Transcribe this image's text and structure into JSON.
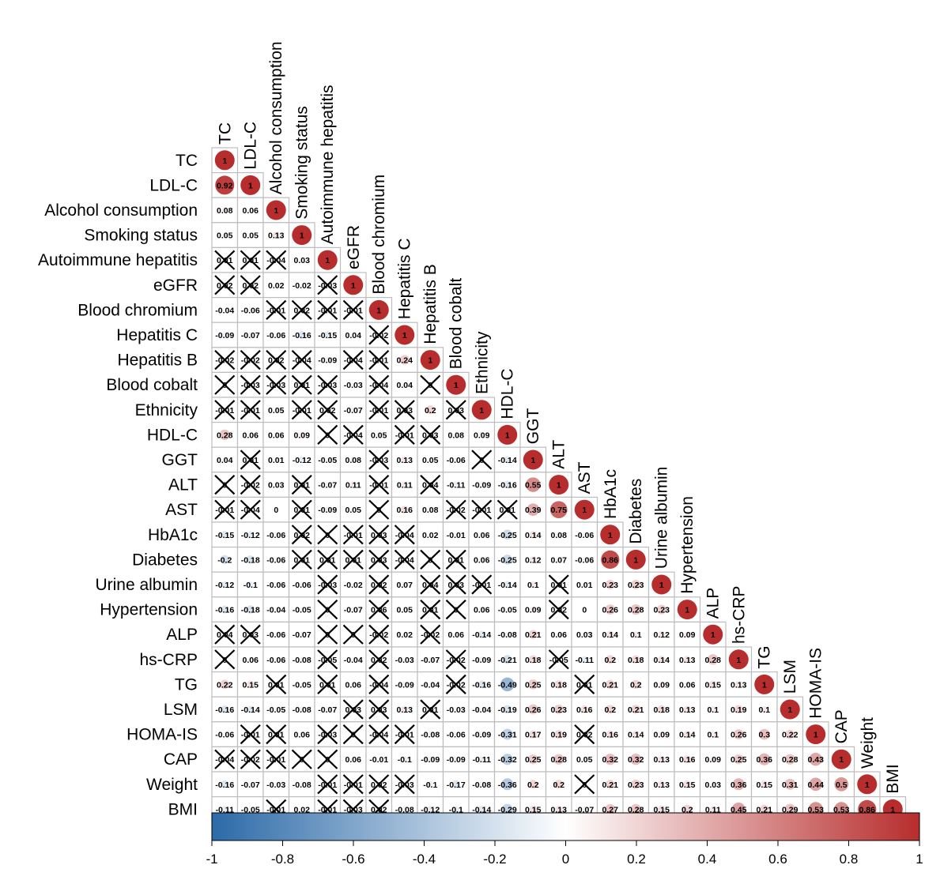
{
  "chart_data": {
    "type": "heatmap",
    "subtype": "correlation-matrix-lower-triangle",
    "variables": [
      "TC",
      "LDL-C",
      "Alcohol consumption",
      "Smoking status",
      "Autoimmune hepatitis",
      "eGFR",
      "Blood chromium",
      "Hepatitis C",
      "Hepatitis B",
      "Blood cobalt",
      "Ethnicity",
      "HDL-C",
      "GGT",
      "ALT",
      "AST",
      "HbA1c",
      "Diabetes",
      "Urine albumin",
      "Hypertension",
      "ALP",
      "hs-CRP",
      "TG",
      "LSM",
      "HOMA-IS",
      "CAP",
      "Weight",
      "BMI"
    ],
    "rows": [
      [
        {
          "v": "1"
        }
      ],
      [
        {
          "v": "0.92"
        },
        {
          "v": "1"
        }
      ],
      [
        {
          "v": "0.08"
        },
        {
          "v": "0.06"
        },
        {
          "v": "1"
        }
      ],
      [
        {
          "v": "0.05"
        },
        {
          "v": "0.05"
        },
        {
          "v": "0.13"
        },
        {
          "v": "1"
        }
      ],
      [
        {
          "v": "0.01",
          "x": 1
        },
        {
          "v": "0.01",
          "x": 1
        },
        {
          "v": "-0.04",
          "x": 1
        },
        {
          "v": "0.03"
        },
        {
          "v": "1"
        }
      ],
      [
        {
          "v": "0.02",
          "x": 1
        },
        {
          "v": "0.02",
          "x": 1
        },
        {
          "v": "0.02"
        },
        {
          "v": "-0.02"
        },
        {
          "v": "-0.03",
          "x": 1
        },
        {
          "v": "1"
        }
      ],
      [
        {
          "v": "-0.04"
        },
        {
          "v": "-0.06"
        },
        {
          "v": "-0.01",
          "x": 1
        },
        {
          "v": "0.02",
          "x": 1
        },
        {
          "v": "-0.01",
          "x": 1
        },
        {
          "v": "-0.01",
          "x": 1
        },
        {
          "v": "1"
        }
      ],
      [
        {
          "v": "-0.09"
        },
        {
          "v": "-0.07"
        },
        {
          "v": "-0.06"
        },
        {
          "v": "-0.16"
        },
        {
          "v": "-0.15"
        },
        {
          "v": "0.04"
        },
        {
          "v": "-0.02",
          "x": 1
        },
        {
          "v": "1"
        }
      ],
      [
        {
          "v": "-0.02",
          "x": 1
        },
        {
          "v": "-0.02",
          "x": 1
        },
        {
          "v": "0.02",
          "x": 1
        },
        {
          "v": "-0.04",
          "x": 1
        },
        {
          "v": "-0.09"
        },
        {
          "v": "-0.04",
          "x": 1
        },
        {
          "v": "-0.01",
          "x": 1
        },
        {
          "v": "0.24"
        },
        {
          "v": "1"
        }
      ],
      [
        {
          "v": "0",
          "x": 1
        },
        {
          "v": "-0.03",
          "x": 1
        },
        {
          "v": "-0.03",
          "x": 1
        },
        {
          "v": "0.01",
          "x": 1
        },
        {
          "v": "-0.03",
          "x": 1
        },
        {
          "v": "-0.03"
        },
        {
          "v": "-0.04",
          "x": 1
        },
        {
          "v": "0.04"
        },
        {
          "v": "0",
          "x": 1
        },
        {
          "v": "1"
        }
      ],
      [
        {
          "v": "-0.01",
          "x": 1
        },
        {
          "v": "-0.01",
          "x": 1
        },
        {
          "v": "0.05"
        },
        {
          "v": "-0.01",
          "x": 1
        },
        {
          "v": "0.02",
          "x": 1
        },
        {
          "v": "-0.07"
        },
        {
          "v": "-0.01",
          "x": 1
        },
        {
          "v": "0.03",
          "x": 1
        },
        {
          "v": "0.2"
        },
        {
          "v": "0.03",
          "x": 1
        },
        {
          "v": "1"
        }
      ],
      [
        {
          "v": "0.28"
        },
        {
          "v": "0.06"
        },
        {
          "v": "0.06"
        },
        {
          "v": "0.09"
        },
        {
          "v": "0",
          "x": 1
        },
        {
          "v": "-0.04",
          "x": 1
        },
        {
          "v": "0.05"
        },
        {
          "v": "-0.01",
          "x": 1
        },
        {
          "v": "0.03",
          "x": 1
        },
        {
          "v": "0.08"
        },
        {
          "v": "0.09"
        },
        {
          "v": "1"
        }
      ],
      [
        {
          "v": "0.04"
        },
        {
          "v": "0.01",
          "x": 1
        },
        {
          "v": "0.01"
        },
        {
          "v": "-0.12"
        },
        {
          "v": "-0.05"
        },
        {
          "v": "0.08"
        },
        {
          "v": "-0.03",
          "x": 1
        },
        {
          "v": "0.13"
        },
        {
          "v": "0.05"
        },
        {
          "v": "-0.06"
        },
        {
          "v": "0",
          "x": 1
        },
        {
          "v": "-0.14"
        },
        {
          "v": "1"
        }
      ],
      [
        {
          "v": "0",
          "x": 1
        },
        {
          "v": "-0.02",
          "x": 1
        },
        {
          "v": "0.03"
        },
        {
          "v": "0.01",
          "x": 1
        },
        {
          "v": "-0.07"
        },
        {
          "v": "0.11"
        },
        {
          "v": "-0.01",
          "x": 1
        },
        {
          "v": "0.11"
        },
        {
          "v": "0.04",
          "x": 1
        },
        {
          "v": "-0.11"
        },
        {
          "v": "-0.09"
        },
        {
          "v": "-0.16"
        },
        {
          "v": "0.55"
        },
        {
          "v": "1"
        }
      ],
      [
        {
          "v": "-0.01",
          "x": 1
        },
        {
          "v": "-0.04",
          "x": 1
        },
        {
          "v": "0"
        },
        {
          "v": "0.01",
          "x": 1
        },
        {
          "v": "-0.09"
        },
        {
          "v": "0.05"
        },
        {
          "v": "0",
          "x": 1
        },
        {
          "v": "0.16"
        },
        {
          "v": "0.08"
        },
        {
          "v": "-0.02",
          "x": 1
        },
        {
          "v": "-0.01",
          "x": 1
        },
        {
          "v": "0.01",
          "x": 1
        },
        {
          "v": "0.39"
        },
        {
          "v": "0.75"
        },
        {
          "v": "1"
        }
      ],
      [
        {
          "v": "-0.15"
        },
        {
          "v": "-0.12"
        },
        {
          "v": "-0.06"
        },
        {
          "v": "0.02",
          "x": 1
        },
        {
          "v": "0",
          "x": 1
        },
        {
          "v": "-0.01",
          "x": 1
        },
        {
          "v": "0.03",
          "x": 1
        },
        {
          "v": "-0.04",
          "x": 1
        },
        {
          "v": "0.02"
        },
        {
          "v": "-0.01"
        },
        {
          "v": "0.06"
        },
        {
          "v": "-0.25"
        },
        {
          "v": "0.14"
        },
        {
          "v": "0.08"
        },
        {
          "v": "-0.06"
        },
        {
          "v": "1"
        }
      ],
      [
        {
          "v": "-0.2"
        },
        {
          "v": "-0.18"
        },
        {
          "v": "-0.06"
        },
        {
          "v": "0.01",
          "x": 1
        },
        {
          "v": "0.01",
          "x": 1
        },
        {
          "v": "0.01",
          "x": 1
        },
        {
          "v": "0.03",
          "x": 1
        },
        {
          "v": "-0.04",
          "x": 1
        },
        {
          "v": "0",
          "x": 1
        },
        {
          "v": "0.01",
          "x": 1
        },
        {
          "v": "0.06"
        },
        {
          "v": "-0.25"
        },
        {
          "v": "0.12"
        },
        {
          "v": "0.07"
        },
        {
          "v": "-0.06"
        },
        {
          "v": "0.86"
        },
        {
          "v": "1"
        }
      ],
      [
        {
          "v": "-0.12"
        },
        {
          "v": "-0.1"
        },
        {
          "v": "-0.06"
        },
        {
          "v": "-0.06"
        },
        {
          "v": "-0.03",
          "x": 1
        },
        {
          "v": "-0.02"
        },
        {
          "v": "0.02",
          "x": 1
        },
        {
          "v": "0.07"
        },
        {
          "v": "0.04",
          "x": 1
        },
        {
          "v": "0.03",
          "x": 1
        },
        {
          "v": "-0.01",
          "x": 1
        },
        {
          "v": "-0.14"
        },
        {
          "v": "0.1"
        },
        {
          "v": "0.01",
          "x": 1
        },
        {
          "v": "0.01"
        },
        {
          "v": "0.23"
        },
        {
          "v": "0.23"
        },
        {
          "v": "1"
        }
      ],
      [
        {
          "v": "-0.16"
        },
        {
          "v": "-0.18"
        },
        {
          "v": "-0.04"
        },
        {
          "v": "-0.05"
        },
        {
          "v": "0",
          "x": 1
        },
        {
          "v": "-0.07"
        },
        {
          "v": "0.06",
          "x": 1
        },
        {
          "v": "0.05"
        },
        {
          "v": "0.01",
          "x": 1
        },
        {
          "v": "0",
          "x": 1
        },
        {
          "v": "0.06"
        },
        {
          "v": "-0.05"
        },
        {
          "v": "0.09"
        },
        {
          "v": "0.02",
          "x": 1
        },
        {
          "v": "0"
        },
        {
          "v": "0.26"
        },
        {
          "v": "0.28"
        },
        {
          "v": "0.23"
        },
        {
          "v": "1"
        }
      ],
      [
        {
          "v": "0.04",
          "x": 1
        },
        {
          "v": "0.03",
          "x": 1
        },
        {
          "v": "-0.06"
        },
        {
          "v": "-0.07"
        },
        {
          "v": "0",
          "x": 1
        },
        {
          "v": "0",
          "x": 1
        },
        {
          "v": "-0.02",
          "x": 1
        },
        {
          "v": "0.02"
        },
        {
          "v": "-0.02",
          "x": 1
        },
        {
          "v": "0.06"
        },
        {
          "v": "-0.14"
        },
        {
          "v": "-0.08"
        },
        {
          "v": "0.21"
        },
        {
          "v": "0.06"
        },
        {
          "v": "0.03"
        },
        {
          "v": "0.14"
        },
        {
          "v": "0.1"
        },
        {
          "v": "0.12"
        },
        {
          "v": "0.09"
        },
        {
          "v": "1"
        }
      ],
      [
        {
          "v": "0",
          "x": 1
        },
        {
          "v": "0.06"
        },
        {
          "v": "-0.06"
        },
        {
          "v": "-0.08"
        },
        {
          "v": "-0.05",
          "x": 1
        },
        {
          "v": "-0.04"
        },
        {
          "v": "0.02",
          "x": 1
        },
        {
          "v": "-0.03"
        },
        {
          "v": "-0.07"
        },
        {
          "v": "-0.02",
          "x": 1
        },
        {
          "v": "-0.09"
        },
        {
          "v": "-0.21"
        },
        {
          "v": "0.18"
        },
        {
          "v": "-0.05",
          "x": 1
        },
        {
          "v": "-0.11"
        },
        {
          "v": "0.2"
        },
        {
          "v": "0.18"
        },
        {
          "v": "0.14"
        },
        {
          "v": "0.13"
        },
        {
          "v": "0.28"
        },
        {
          "v": "1"
        }
      ],
      [
        {
          "v": "0.22"
        },
        {
          "v": "0.15"
        },
        {
          "v": "0.01",
          "x": 1
        },
        {
          "v": "-0.05"
        },
        {
          "v": "0.01",
          "x": 1
        },
        {
          "v": "0.06"
        },
        {
          "v": "-0.04",
          "x": 1
        },
        {
          "v": "-0.09"
        },
        {
          "v": "-0.04"
        },
        {
          "v": "-0.02",
          "x": 1
        },
        {
          "v": "-0.16"
        },
        {
          "v": "-0.49"
        },
        {
          "v": "0.25"
        },
        {
          "v": "0.18"
        },
        {
          "v": "0.01",
          "x": 1
        },
        {
          "v": "0.21"
        },
        {
          "v": "0.2"
        },
        {
          "v": "0.09"
        },
        {
          "v": "0.06"
        },
        {
          "v": "0.15"
        },
        {
          "v": "0.13"
        },
        {
          "v": "1"
        }
      ],
      [
        {
          "v": "-0.16"
        },
        {
          "v": "-0.14"
        },
        {
          "v": "-0.05"
        },
        {
          "v": "-0.08"
        },
        {
          "v": "-0.07"
        },
        {
          "v": "0.03",
          "x": 1
        },
        {
          "v": "0.03",
          "x": 1
        },
        {
          "v": "0.13"
        },
        {
          "v": "0.01",
          "x": 1
        },
        {
          "v": "-0.03"
        },
        {
          "v": "-0.04"
        },
        {
          "v": "-0.19"
        },
        {
          "v": "0.26"
        },
        {
          "v": "0.23"
        },
        {
          "v": "0.16"
        },
        {
          "v": "0.2"
        },
        {
          "v": "0.21"
        },
        {
          "v": "0.18"
        },
        {
          "v": "0.13"
        },
        {
          "v": "0.1"
        },
        {
          "v": "0.19"
        },
        {
          "v": "0.1"
        },
        {
          "v": "1"
        }
      ],
      [
        {
          "v": "-0.06"
        },
        {
          "v": "-0.01",
          "x": 1
        },
        {
          "v": "0.01",
          "x": 1
        },
        {
          "v": "0.06"
        },
        {
          "v": "-0.03",
          "x": 1
        },
        {
          "v": "0",
          "x": 1
        },
        {
          "v": "-0.04",
          "x": 1
        },
        {
          "v": "-0.01",
          "x": 1
        },
        {
          "v": "-0.08"
        },
        {
          "v": "-0.06"
        },
        {
          "v": "-0.09"
        },
        {
          "v": "-0.31"
        },
        {
          "v": "0.17"
        },
        {
          "v": "0.19"
        },
        {
          "v": "0.02",
          "x": 1
        },
        {
          "v": "0.16"
        },
        {
          "v": "0.14"
        },
        {
          "v": "0.09"
        },
        {
          "v": "0.14"
        },
        {
          "v": "0.1"
        },
        {
          "v": "0.26"
        },
        {
          "v": "0.3"
        },
        {
          "v": "0.22"
        },
        {
          "v": "1"
        }
      ],
      [
        {
          "v": "-0.04",
          "x": 1
        },
        {
          "v": "-0.02",
          "x": 1
        },
        {
          "v": "-0.01",
          "x": 1
        },
        {
          "v": "0",
          "x": 1
        },
        {
          "v": "0",
          "x": 1
        },
        {
          "v": "0.06"
        },
        {
          "v": "-0.01"
        },
        {
          "v": "-0.1"
        },
        {
          "v": "-0.09"
        },
        {
          "v": "-0.09"
        },
        {
          "v": "-0.11"
        },
        {
          "v": "-0.32"
        },
        {
          "v": "0.25"
        },
        {
          "v": "0.28"
        },
        {
          "v": "0.05"
        },
        {
          "v": "0.32"
        },
        {
          "v": "0.32"
        },
        {
          "v": "0.13"
        },
        {
          "v": "0.16"
        },
        {
          "v": "0.09"
        },
        {
          "v": "0.25"
        },
        {
          "v": "0.36"
        },
        {
          "v": "0.28"
        },
        {
          "v": "0.43"
        },
        {
          "v": "1"
        }
      ],
      [
        {
          "v": "-0.16"
        },
        {
          "v": "-0.07"
        },
        {
          "v": "-0.03"
        },
        {
          "v": "-0.08"
        },
        {
          "v": "-0.01",
          "x": 1
        },
        {
          "v": "-0.01",
          "x": 1
        },
        {
          "v": "0.02",
          "x": 1
        },
        {
          "v": "-0.03",
          "x": 1
        },
        {
          "v": "-0.1"
        },
        {
          "v": "-0.17"
        },
        {
          "v": "-0.08"
        },
        {
          "v": "-0.36"
        },
        {
          "v": "0.2"
        },
        {
          "v": "0.2"
        },
        {
          "v": "0",
          "x": 1
        },
        {
          "v": "0.21"
        },
        {
          "v": "0.23"
        },
        {
          "v": "0.13"
        },
        {
          "v": "0.15"
        },
        {
          "v": "0.03"
        },
        {
          "v": "0.36"
        },
        {
          "v": "0.15"
        },
        {
          "v": "0.31"
        },
        {
          "v": "0.44"
        },
        {
          "v": "0.5"
        },
        {
          "v": "1"
        }
      ],
      [
        {
          "v": "-0.11"
        },
        {
          "v": "-0.05"
        },
        {
          "v": "-0.01",
          "x": 1
        },
        {
          "v": "0.02"
        },
        {
          "v": "-0.01",
          "x": 1
        },
        {
          "v": "-0.03",
          "x": 1
        },
        {
          "v": "0.02",
          "x": 1
        },
        {
          "v": "-0.08"
        },
        {
          "v": "-0.12"
        },
        {
          "v": "-0.1"
        },
        {
          "v": "-0.14"
        },
        {
          "v": "-0.29"
        },
        {
          "v": "0.15"
        },
        {
          "v": "0.13"
        },
        {
          "v": "-0.07"
        },
        {
          "v": "0.27"
        },
        {
          "v": "0.28"
        },
        {
          "v": "0.15"
        },
        {
          "v": "0.2"
        },
        {
          "v": "0.11"
        },
        {
          "v": "0.45"
        },
        {
          "v": "0.21"
        },
        {
          "v": "0.29"
        },
        {
          "v": "0.53"
        },
        {
          "v": "0.53"
        },
        {
          "v": "0.86"
        },
        {
          "v": "1"
        }
      ]
    ],
    "colorbar": {
      "range": [
        -1,
        1
      ],
      "ticks": [
        "-1",
        "-0.8",
        "-0.6",
        "-0.4",
        "-0.2",
        "0",
        "0.2",
        "0.4",
        "0.6",
        "0.8",
        "1"
      ],
      "colors": {
        "negative": "#2c6aa8",
        "neutral": "#ffffff",
        "positive": "#b72d2d"
      }
    }
  }
}
